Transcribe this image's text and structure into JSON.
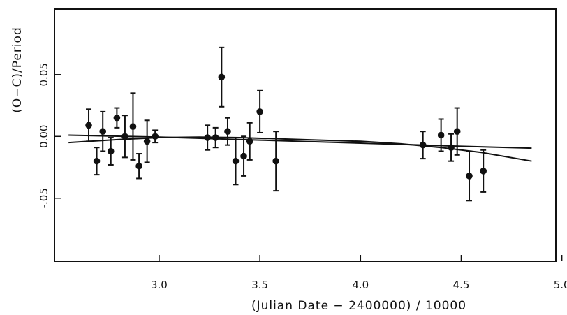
{
  "chart_data": {
    "type": "scatter",
    "title": "",
    "xlabel": "(Julian Date − 2400000) / 10000",
    "ylabel": "(O−C)/Period",
    "xlim": [
      2.48,
      4.97
    ],
    "ylim": [
      -0.101,
      0.103
    ],
    "x_ticks": [
      {
        "value": 3.0,
        "label": "3.0"
      },
      {
        "value": 3.5,
        "label": "3.5"
      },
      {
        "value": 4.0,
        "label": "4.0"
      },
      {
        "value": 4.5,
        "label": "4.5"
      },
      {
        "value": 5.0,
        "label": "5.0"
      }
    ],
    "y_ticks": [
      {
        "value": 0.05,
        "label": "0.05"
      },
      {
        "value": 0.0,
        "label": "0.00"
      },
      {
        "value": -0.05,
        "label": "-.05"
      }
    ],
    "grid": false,
    "points": [
      {
        "x": 2.65,
        "y": 0.009,
        "yerr": 0.013
      },
      {
        "x": 2.69,
        "y": -0.02,
        "yerr": 0.011
      },
      {
        "x": 2.72,
        "y": 0.004,
        "yerr": 0.016
      },
      {
        "x": 2.76,
        "y": -0.012,
        "yerr": 0.011
      },
      {
        "x": 2.79,
        "y": 0.015,
        "yerr": 0.008
      },
      {
        "x": 2.83,
        "y": 0.0,
        "yerr": 0.017
      },
      {
        "x": 2.87,
        "y": 0.008,
        "yerr": 0.027
      },
      {
        "x": 2.9,
        "y": -0.024,
        "yerr": 0.01
      },
      {
        "x": 2.94,
        "y": -0.004,
        "yerr": 0.017
      },
      {
        "x": 2.98,
        "y": 0.0,
        "yerr": 0.005
      },
      {
        "x": 3.24,
        "y": -0.001,
        "yerr": 0.01
      },
      {
        "x": 3.28,
        "y": -0.001,
        "yerr": 0.008
      },
      {
        "x": 3.31,
        "y": 0.048,
        "yerr": 0.024
      },
      {
        "x": 3.34,
        "y": 0.004,
        "yerr": 0.011
      },
      {
        "x": 3.38,
        "y": -0.02,
        "yerr": 0.019
      },
      {
        "x": 3.42,
        "y": -0.016,
        "yerr": 0.016
      },
      {
        "x": 3.45,
        "y": -0.004,
        "yerr": 0.015
      },
      {
        "x": 3.5,
        "y": 0.02,
        "yerr": 0.017
      },
      {
        "x": 3.58,
        "y": -0.02,
        "yerr": 0.024
      },
      {
        "x": 4.31,
        "y": -0.007,
        "yerr": 0.011
      },
      {
        "x": 4.4,
        "y": 0.001,
        "yerr": 0.013
      },
      {
        "x": 4.45,
        "y": -0.009,
        "yerr": 0.011
      },
      {
        "x": 4.48,
        "y": 0.004,
        "yerr": 0.019
      },
      {
        "x": 4.54,
        "y": -0.032,
        "yerr": 0.02
      },
      {
        "x": 4.61,
        "y": -0.028,
        "yerr": 0.017
      }
    ],
    "series": [
      {
        "x": [
          2.55,
          3.0,
          3.5,
          4.0,
          4.5,
          4.85
        ],
        "y": [
          0.001,
          -0.0005,
          -0.003,
          -0.0055,
          -0.008,
          -0.0095
        ]
      },
      {
        "x": [
          2.55,
          2.8,
          3.0,
          3.2,
          3.4,
          3.6,
          3.8,
          4.0,
          4.2,
          4.4,
          4.6,
          4.85
        ],
        "y": [
          -0.005,
          -0.0025,
          -0.001,
          -0.0005,
          -0.001,
          -0.002,
          -0.003,
          -0.004,
          -0.006,
          -0.009,
          -0.013,
          -0.02
        ]
      }
    ]
  },
  "colors": {
    "ink": "#111111",
    "background": "#ffffff"
  }
}
